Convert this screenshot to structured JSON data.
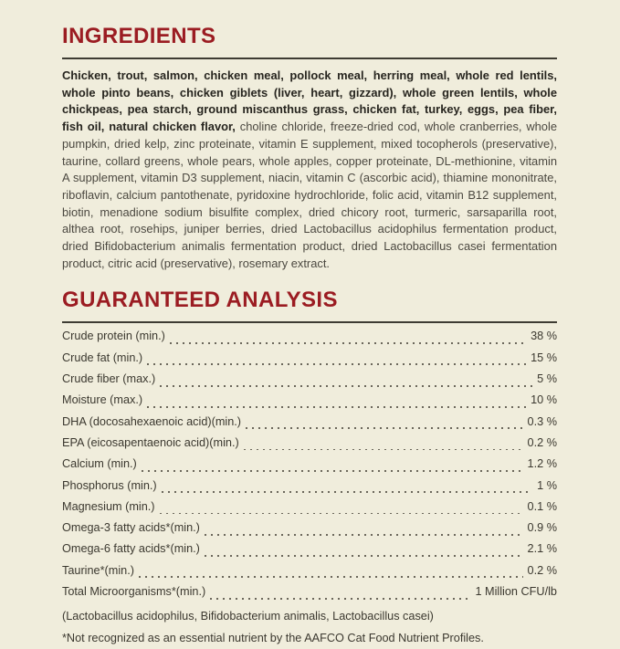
{
  "ingredients": {
    "heading": "INGREDIENTS",
    "primary_bold": "Chicken, trout, salmon, chicken meal, pollock meal, herring meal, whole red lentils, whole pinto beans, chicken giblets (liver, heart, gizzard), whole green lentils, whole chickpeas, pea starch, ground miscanthus grass, chicken fat, turkey, eggs, pea fiber, fish oil, natural chicken flavor,",
    "secondary_regular": " choline chloride, freeze-dried cod, whole cranberries, whole pumpkin, dried kelp, zinc proteinate, vitamin E supplement, mixed tocopherols (preservative), taurine, collard greens, whole pears, whole apples, copper proteinate, DL-methionine, vitamin A supplement, vitamin D3 supplement, niacin, vitamin C (ascorbic acid), thiamine mononitrate, riboflavin, calcium pantothenate, pyridoxine hydrochloride, folic acid, vitamin B12 supplement, biotin, menadione sodium bisulfite complex, dried chicory root, turmeric, sarsaparilla root, althea root, rosehips, juniper berries, dried Lactobacillus acidophilus fermentation product, dried Bifidobacterium animalis fermentation product, dried Lactobacillus casei fermentation product, citric acid (preservative), rosemary extract."
  },
  "guaranteed_analysis": {
    "heading": "GUARANTEED ANALYSIS",
    "rows": [
      {
        "label": "Crude protein (min.)",
        "value": "38 %"
      },
      {
        "label": "Crude fat (min.)",
        "value": "15 %"
      },
      {
        "label": "Crude fiber (max.)",
        "value": "5 %"
      },
      {
        "label": "Moisture (max.)",
        "value": "10 %"
      },
      {
        "label": "DHA (docosahexaenoic acid)(min.)",
        "value": "0.3 %"
      },
      {
        "label": "EPA (eicosapentaenoic acid)(min.)",
        "value": "0.2 %"
      },
      {
        "label": "Calcium (min.)",
        "value": "1.2 %"
      },
      {
        "label": "Phosphorus (min.)",
        "value": "1 %"
      },
      {
        "label": "Magnesium (min.)",
        "value": "0.1 %"
      },
      {
        "label": "Omega-3 fatty acids*(min.)",
        "value": "0.9 %"
      },
      {
        "label": "Omega-6 fatty acids*(min.)",
        "value": "2.1 %"
      },
      {
        "label": "Taurine*(min.)",
        "value": "0.2 %"
      },
      {
        "label": "Total Microorganisms*(min.)",
        "value": "1 Million CFU/lb"
      }
    ],
    "microorganisms_note": "(Lactobacillus acidophilus, Bifidobacterium animalis, Lactobacillus casei)",
    "footnote": "*Not recognized as an essential nutrient by the AAFCO Cat Food Nutrient Profiles."
  },
  "colors": {
    "background_cream": "#F0EDDC",
    "heading_red": "#9B1C22",
    "rule_dark": "#3E3C33",
    "text_bold_dark": "#27251F",
    "text_body_gray": "#4B4840",
    "text_table": "#3B382F"
  }
}
